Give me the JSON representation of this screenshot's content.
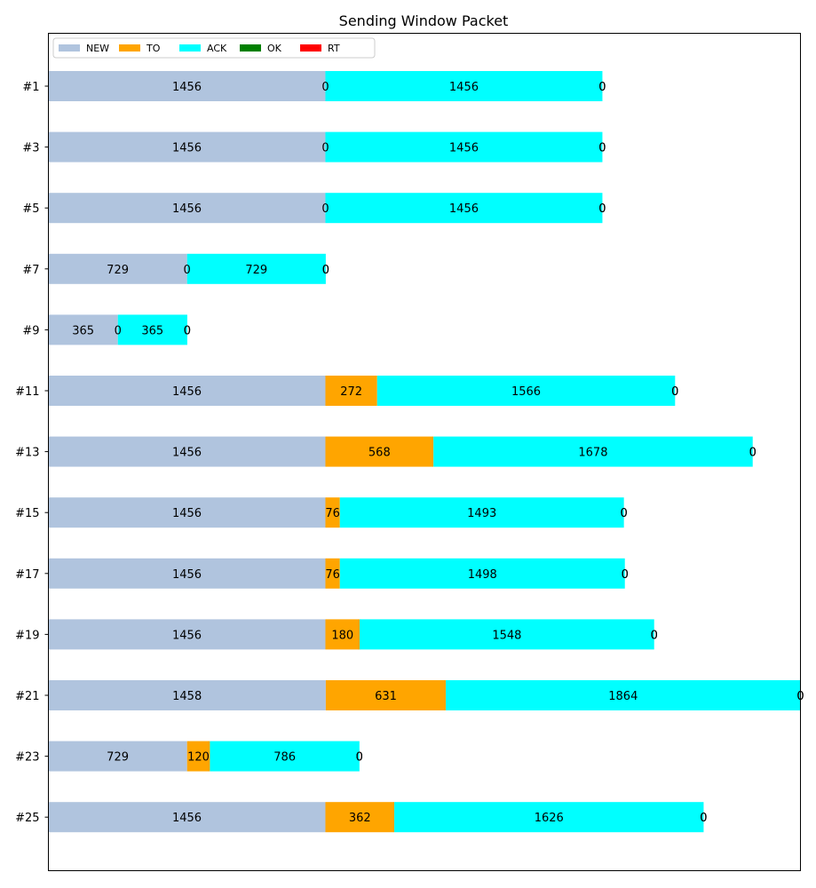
{
  "chart_data": {
    "type": "bar",
    "orientation": "horizontal",
    "stacked": true,
    "title": "Sending Window Packet",
    "xlabel": "",
    "ylabel": "",
    "xlim": [
      0,
      3953
    ],
    "grid": false,
    "legend_position": "top-left",
    "categories": [
      "#1",
      "#3",
      "#5",
      "#7",
      "#9",
      "#11",
      "#13",
      "#15",
      "#17",
      "#19",
      "#21",
      "#23",
      "#25"
    ],
    "series": [
      {
        "name": "NEW",
        "color": "#b0c4de",
        "values": [
          1456,
          1456,
          1456,
          729,
          365,
          1456,
          1456,
          1456,
          1456,
          1456,
          1458,
          729,
          1456
        ]
      },
      {
        "name": "TO",
        "color": "#ffa500",
        "values": [
          0,
          0,
          0,
          0,
          0,
          272,
          568,
          76,
          76,
          180,
          631,
          120,
          362
        ]
      },
      {
        "name": "ACK",
        "color": "#00ffff",
        "values": [
          1456,
          1456,
          1456,
          729,
          365,
          1566,
          1678,
          1493,
          1498,
          1548,
          1864,
          786,
          1626
        ]
      },
      {
        "name": "OK",
        "color": "#008000",
        "values": [
          0,
          0,
          0,
          0,
          0,
          0,
          0,
          0,
          0,
          0,
          0,
          0,
          0
        ]
      },
      {
        "name": "RT",
        "color": "#ff0000",
        "values": [
          0,
          0,
          0,
          0,
          0,
          0,
          0,
          0,
          0,
          0,
          0,
          0,
          0
        ]
      }
    ]
  }
}
